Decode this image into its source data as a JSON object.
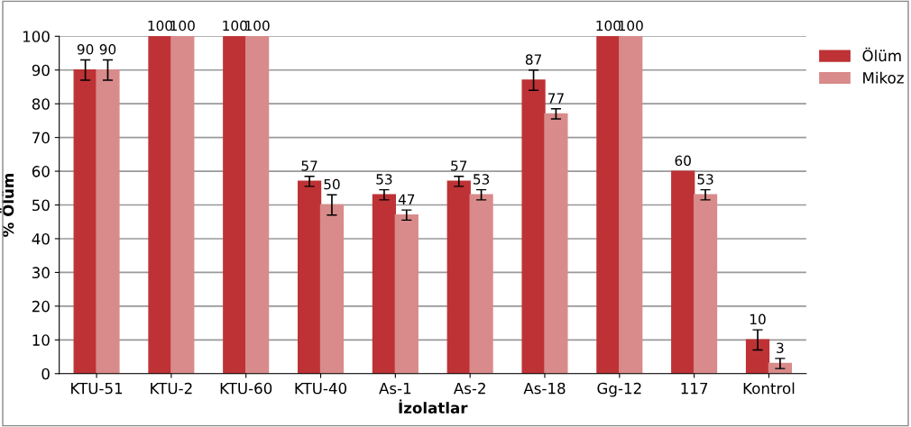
{
  "chart_data": {
    "type": "bar",
    "xlabel": "İzolatlar",
    "ylabel": "% Ölüm",
    "categories": [
      "KTU-51",
      "KTU-2",
      "KTU-60",
      "KTU-40",
      "As-1",
      "As-2",
      "As-18",
      "Gg-12",
      "117",
      "Kontrol"
    ],
    "series": [
      {
        "name": "Ölüm",
        "color": "#be3235",
        "values": [
          90,
          100,
          100,
          57,
          53,
          57,
          87,
          100,
          60,
          10
        ],
        "errors": [
          3,
          null,
          null,
          1.5,
          1.5,
          1.5,
          3,
          null,
          null,
          3
        ]
      },
      {
        "name": "Mikoz",
        "color": "#d98a8a",
        "values": [
          90,
          100,
          100,
          50,
          47,
          53,
          77,
          100,
          53,
          3
        ],
        "errors": [
          3,
          null,
          null,
          3,
          1.5,
          1.5,
          1.5,
          null,
          1.5,
          1.5
        ]
      }
    ],
    "ylim": [
      0,
      100
    ],
    "yticks": [
      0,
      10,
      20,
      30,
      40,
      50,
      60,
      70,
      80,
      90,
      100
    ],
    "grid": "y",
    "legend": "right",
    "data_labels": true
  }
}
